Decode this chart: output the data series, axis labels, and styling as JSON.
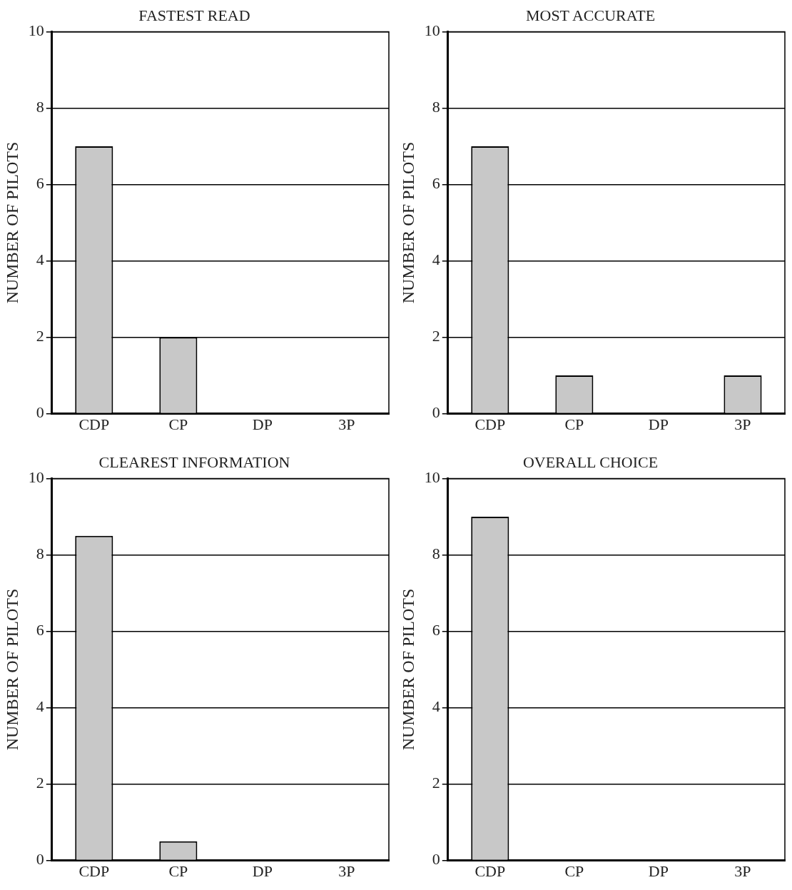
{
  "chart_data": [
    {
      "type": "bar",
      "title": "FASTEST READ",
      "ylabel": "NUMBER OF PILOTS",
      "categories": [
        "CDP",
        "CP",
        "DP",
        "3P"
      ],
      "values": [
        7,
        2,
        0,
        0
      ],
      "color": "#c8c8c8",
      "ylim": [
        0,
        10
      ],
      "yticks": [
        0,
        2,
        4,
        6,
        8,
        10
      ],
      "grid": "y"
    },
    {
      "type": "bar",
      "title": "MOST ACCURATE",
      "ylabel": "NUMBER OF PILOTS",
      "categories": [
        "CDP",
        "CP",
        "DP",
        "3P"
      ],
      "values": [
        7,
        1,
        0,
        1
      ],
      "color": "#c8c8c8",
      "ylim": [
        0,
        10
      ],
      "yticks": [
        0,
        2,
        4,
        6,
        8,
        10
      ],
      "grid": "y"
    },
    {
      "type": "bar",
      "title": "CLEAREST INFORMATION",
      "ylabel": "NUMBER OF PILOTS",
      "categories": [
        "CDP",
        "CP",
        "DP",
        "3P"
      ],
      "values": [
        8.5,
        0.5,
        0,
        0
      ],
      "color": "#c8c8c8",
      "ylim": [
        0,
        10
      ],
      "yticks": [
        0,
        2,
        4,
        6,
        8,
        10
      ],
      "grid": "y"
    },
    {
      "type": "bar",
      "title": "OVERALL CHOICE",
      "ylabel": "NUMBER OF PILOTS",
      "categories": [
        "CDP",
        "CP",
        "DP",
        "3P"
      ],
      "values": [
        9,
        0,
        0,
        0
      ],
      "color": "#c8c8c8",
      "ylim": [
        0,
        10
      ],
      "yticks": [
        0,
        2,
        4,
        6,
        8,
        10
      ],
      "grid": "y"
    }
  ]
}
